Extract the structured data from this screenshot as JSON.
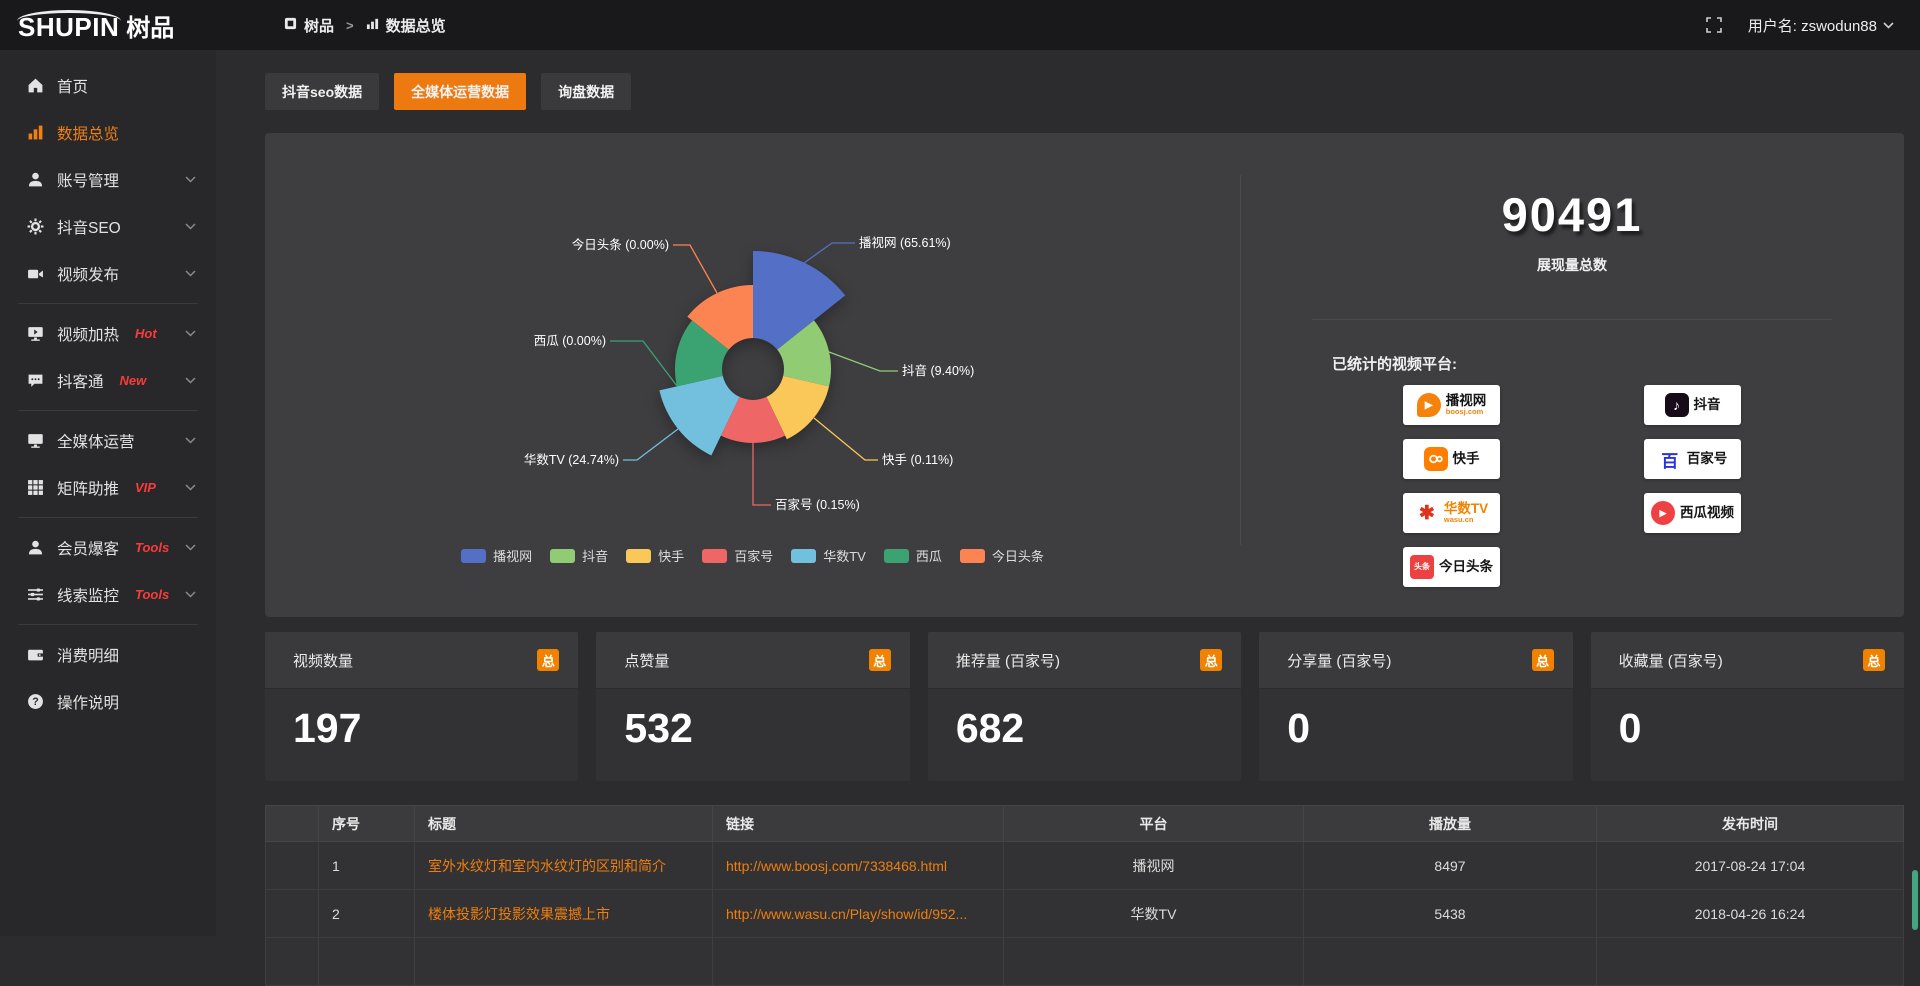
{
  "colors": {
    "accent": "#ec7a10",
    "badge_orange": "#f08200",
    "link_orange": "#ee7e0e",
    "danger_red": "#fb3b3b"
  },
  "topbar": {
    "logo_text": "SHUPIN",
    "logo_suffix": "树品",
    "breadcrumb": [
      {
        "label": "树品"
      },
      {
        "label": "数据总览"
      }
    ],
    "breadcrumb_separator": ">",
    "username": "用户名: zswodun88"
  },
  "sidebar": {
    "items": [
      {
        "label": "首页",
        "icon": "home-icon"
      },
      {
        "label": "数据总览",
        "icon": "bar-chart-icon",
        "active": true
      },
      {
        "label": "账号管理",
        "icon": "user-icon",
        "chevron": true
      },
      {
        "label": "抖音SEO",
        "icon": "gear-icon",
        "chevron": true
      },
      {
        "label": "视频发布",
        "icon": "video-icon",
        "chevron": true,
        "divider_after": true
      },
      {
        "label": "视频加热",
        "icon": "monitor-play-icon",
        "badge": "Hot",
        "chevron": true
      },
      {
        "label": "抖客通",
        "icon": "chat-icon",
        "badge": "New",
        "chevron": true,
        "divider_after": true
      },
      {
        "label": "全媒体运营",
        "icon": "monitor-icon",
        "chevron": true
      },
      {
        "label": "矩阵助推",
        "icon": "grid-icon",
        "badge": "VIP",
        "chevron": true,
        "divider_after": true
      },
      {
        "label": "会员爆客",
        "icon": "user-icon",
        "badge": "Tools",
        "chevron": true
      },
      {
        "label": "线索监控",
        "icon": "sliders-icon",
        "badge": "Tools",
        "chevron": true,
        "divider_after": true
      },
      {
        "label": "消费明细",
        "icon": "wallet-icon"
      },
      {
        "label": "操作说明",
        "icon": "question-icon"
      }
    ]
  },
  "tabs": [
    {
      "label": "抖音seo数据",
      "active": false
    },
    {
      "label": "全媒体运营数据",
      "active": true
    },
    {
      "label": "询盘数据",
      "active": false
    }
  ],
  "chart_data": {
    "type": "pie",
    "rose": true,
    "legend_position": "bottom",
    "label_format": "{name} ({percent}%)",
    "items": [
      {
        "name": "播视网",
        "percent": 65.61,
        "color": "#5470c6"
      },
      {
        "name": "抖音",
        "percent": 9.4,
        "color": "#91cc75"
      },
      {
        "name": "快手",
        "percent": 0.11,
        "color": "#fac858"
      },
      {
        "name": "百家号",
        "percent": 0.15,
        "color": "#ee6666"
      },
      {
        "name": "华数TV",
        "percent": 24.74,
        "color": "#73c0de"
      },
      {
        "name": "西瓜",
        "percent": 0.0,
        "color": "#3ba272"
      },
      {
        "name": "今日头条",
        "percent": 0.0,
        "color": "#fc8452"
      }
    ]
  },
  "summary": {
    "total_value": "90491",
    "total_label": "展现量总数",
    "platforms_title": "已统计的视频平台:",
    "platforms": [
      {
        "name": "播视网",
        "sub": "boosj.com",
        "icon": "boosj-logo"
      },
      {
        "name": "快手",
        "sub": "",
        "icon": "kuaishou-logo"
      },
      {
        "name": "华数TV",
        "sub": "wasu.cn",
        "icon": "wasu-logo"
      },
      {
        "name": "今日头条",
        "sub": "",
        "icon": "toutiao-logo"
      },
      {
        "name": "抖音",
        "sub": "",
        "icon": "douyin-logo"
      },
      {
        "name": "百家号",
        "sub": "",
        "icon": "baijiahao-logo"
      },
      {
        "name": "西瓜视频",
        "sub": "",
        "icon": "xigua-logo"
      }
    ]
  },
  "stat_cards": [
    {
      "label": "视频数量",
      "badge": "总",
      "value": "197"
    },
    {
      "label": "点赞量",
      "badge": "总",
      "value": "532"
    },
    {
      "label": "推荐量 (百家号)",
      "badge": "总",
      "value": "682"
    },
    {
      "label": "分享量 (百家号)",
      "badge": "总",
      "value": "0"
    },
    {
      "label": "收藏量 (百家号)",
      "badge": "总",
      "value": "0"
    }
  ],
  "table": {
    "headers": [
      "序号",
      "标题",
      "链接",
      "平台",
      "播放量",
      "发布时间"
    ],
    "rows": [
      {
        "no": "1",
        "title": "室外水纹灯和室内水纹灯的区别和简介",
        "link": "http://www.boosj.com/7338468.html",
        "platform": "播视网",
        "plays": "8497",
        "time": "2017-08-24 17:04"
      },
      {
        "no": "2",
        "title": "楼体投影灯投影效果震撼上市",
        "link": "http://www.wasu.cn/Play/show/id/952...",
        "platform": "华数TV",
        "plays": "5438",
        "time": "2018-04-26 16:24"
      }
    ]
  }
}
